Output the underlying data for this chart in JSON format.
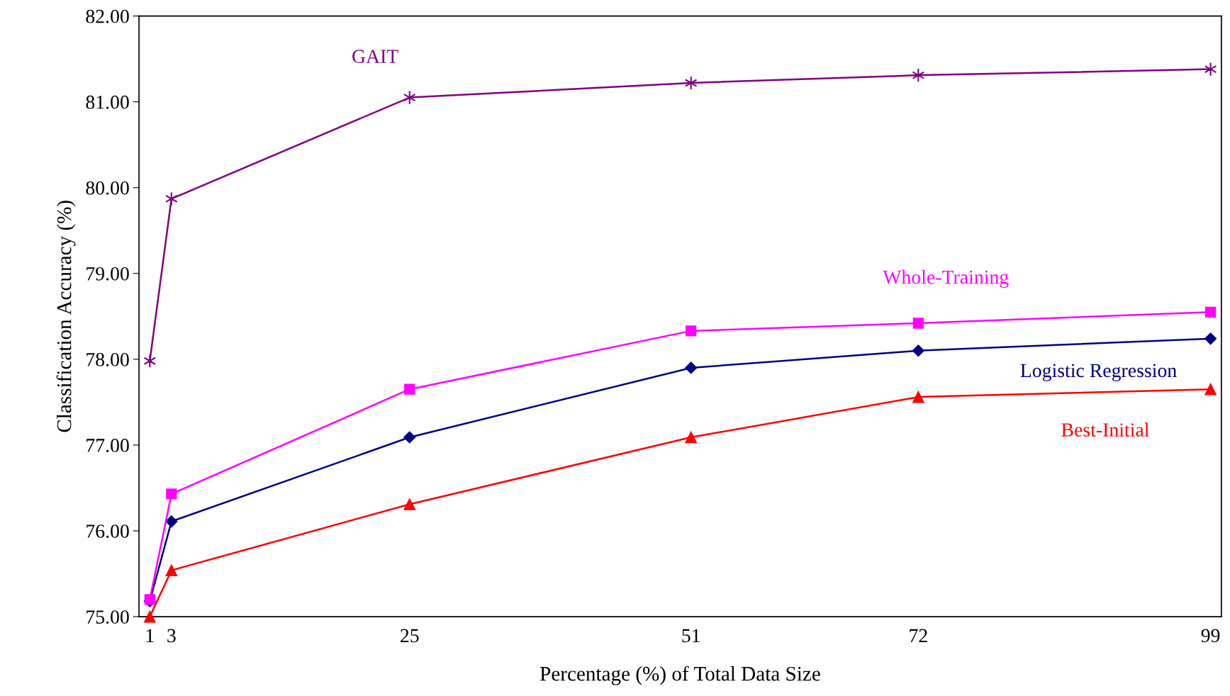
{
  "chart_data": {
    "type": "line",
    "xlabel": "Percentage (%) of Total Data Size",
    "ylabel": "Classification Accuracy (%)",
    "x": [
      1,
      3,
      25,
      51,
      72,
      99
    ],
    "xlim": [
      0,
      100
    ],
    "xticks": [
      1,
      3,
      25,
      51,
      72,
      99
    ],
    "ylim": [
      75,
      82
    ],
    "yticks": [
      {
        "value": 75,
        "label": "75.00"
      },
      {
        "value": 76,
        "label": "76.00"
      },
      {
        "value": 77,
        "label": "77.00"
      },
      {
        "value": 78,
        "label": "78.00"
      },
      {
        "value": 79,
        "label": "79.00"
      },
      {
        "value": 80,
        "label": "80.00"
      },
      {
        "value": 81,
        "label": "81.00"
      },
      {
        "value": 82,
        "label": "82.00"
      }
    ],
    "grid": false,
    "legend": false,
    "series": [
      {
        "name": "GAIT",
        "color": "#800080",
        "marker": "cross",
        "values": [
          77.98,
          79.87,
          81.05,
          81.22,
          81.31,
          81.38
        ]
      },
      {
        "name": "Whole-Training",
        "color": "#ff00ff",
        "marker": "square",
        "values": [
          75.2,
          76.43,
          77.65,
          78.33,
          78.42,
          78.55
        ]
      },
      {
        "name": "Logistic Regression",
        "color": "#000080",
        "marker": "diamond",
        "values": [
          75.18,
          76.11,
          77.09,
          77.9,
          78.1,
          78.24
        ]
      },
      {
        "name": "Best-Initial",
        "color": "#ff0000",
        "marker": "triangle",
        "values": [
          75.0,
          75.54,
          76.31,
          77.09,
          77.56,
          77.65
        ]
      }
    ]
  }
}
